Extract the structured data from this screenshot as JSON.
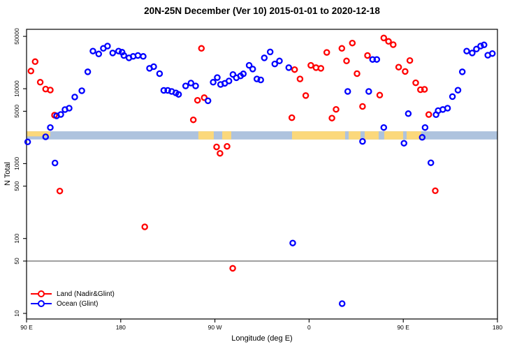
{
  "title": "20N-25N December (Ver 10)   2015-01-01 to 2020-12-18",
  "legend": {
    "items": [
      {
        "label": "Land (Nadir&Glint)",
        "color": "#ff0000"
      },
      {
        "label": "Ocean (Glint)",
        "color": "#0000ff"
      }
    ]
  },
  "chart_data": {
    "type": "scatter",
    "title": "20N-25N December (Ver 10)   2015-01-01 to 2020-12-18",
    "xlabel": "Longitude (deg E)",
    "ylabel": "N Total",
    "x_axis": {
      "type": "linear",
      "range_deg_east": [
        90,
        540
      ],
      "note": "longitude increases eastward from 90E, wrapping through 180, 90W, 0, 90E to 180",
      "ticks": [
        {
          "deg": 90,
          "label": "90 E"
        },
        {
          "deg": 180,
          "label": "180"
        },
        {
          "deg": 270,
          "label": "90 W"
        },
        {
          "deg": 360,
          "label": "0"
        },
        {
          "deg": 450,
          "label": "90 E"
        },
        {
          "deg": 540,
          "label": "180"
        }
      ]
    },
    "y_axis": {
      "type": "log10",
      "range": [
        8.5,
        62000
      ],
      "ticks": [
        10,
        50,
        100,
        500,
        1000,
        5000,
        10000,
        50000
      ]
    },
    "reference_line": {
      "y": 50,
      "color": "#808080"
    },
    "map_strip": {
      "n_top": 2700,
      "n_bottom": 2100,
      "ocean_color": "#aec3de",
      "land_color": "#fbd87b",
      "land_segments_deg": [
        [
          90,
          112.7
        ],
        [
          254.2,
          268.9
        ],
        [
          277.0,
          285.6
        ],
        [
          343.7,
          467.2
        ]
      ],
      "ocean_gaps_deg": [
        [
          394.4,
          397.8
        ],
        [
          409.1,
          413.1
        ],
        [
          426.5,
          431.8
        ],
        [
          449.9,
          453.2
        ]
      ]
    },
    "series": [
      {
        "name": "Land (Nadir&Glint)",
        "color": "#ff0000",
        "marker": "open-circle",
        "points_deg_n": [
          [
            94.2,
            17200
          ],
          [
            98.2,
            23000
          ],
          [
            103.1,
            12200
          ],
          [
            108.2,
            9900
          ],
          [
            112.7,
            9600
          ],
          [
            116.7,
            4430
          ],
          [
            121.8,
            430
          ],
          [
            203.0,
            143
          ],
          [
            249.4,
            3840
          ],
          [
            253.4,
            7000
          ],
          [
            257.1,
            34600
          ],
          [
            259.8,
            7600
          ],
          [
            271.6,
            1670
          ],
          [
            274.9,
            1370
          ],
          [
            281.6,
            1700
          ],
          [
            287.0,
            40
          ],
          [
            343.5,
            4100
          ],
          [
            346.2,
            18000
          ],
          [
            351.3,
            13500
          ],
          [
            356.8,
            8100
          ],
          [
            361.7,
            20500
          ],
          [
            366.6,
            19100
          ],
          [
            371.3,
            18700
          ],
          [
            376.9,
            30500
          ],
          [
            381.8,
            4050
          ],
          [
            385.8,
            5300
          ],
          [
            391.3,
            34600
          ],
          [
            395.8,
            23500
          ],
          [
            401.3,
            40700
          ],
          [
            405.8,
            15900
          ],
          [
            411.1,
            5800
          ],
          [
            415.8,
            27800
          ],
          [
            427.5,
            8200
          ],
          [
            431.4,
            47600
          ],
          [
            435.9,
            42800
          ],
          [
            440.4,
            38700
          ],
          [
            445.6,
            19400
          ],
          [
            451.8,
            17000
          ],
          [
            456.3,
            23800
          ],
          [
            461.9,
            12000
          ],
          [
            466.4,
            9700
          ],
          [
            470.3,
            9800
          ],
          [
            474.4,
            4520
          ],
          [
            480.6,
            434
          ]
        ]
      },
      {
        "name": "Ocean (Glint)",
        "color": "#0000ff",
        "marker": "open-circle",
        "points_deg_n": [
          [
            91.1,
            1950
          ],
          [
            108.2,
            2280
          ],
          [
            112.7,
            3030
          ],
          [
            117.2,
            1020
          ],
          [
            118.7,
            4340
          ],
          [
            122.7,
            4530
          ],
          [
            126.7,
            5260
          ],
          [
            130.7,
            5500
          ],
          [
            136.1,
            7750
          ],
          [
            142.8,
            9400
          ],
          [
            148.5,
            16800
          ],
          [
            153.4,
            31800
          ],
          [
            159.0,
            29100
          ],
          [
            163.4,
            34600
          ],
          [
            167.4,
            37100
          ],
          [
            172.3,
            30000
          ],
          [
            177.9,
            31800
          ],
          [
            181.3,
            30700
          ],
          [
            183.0,
            27800
          ],
          [
            187.9,
            25800
          ],
          [
            191.9,
            27000
          ],
          [
            196.4,
            27800
          ],
          [
            201.5,
            27000
          ],
          [
            207.5,
            18700
          ],
          [
            211.5,
            19700
          ],
          [
            217.1,
            15900
          ],
          [
            221.1,
            9500
          ],
          [
            224.9,
            9500
          ],
          [
            228.7,
            9200
          ],
          [
            232.7,
            8800
          ],
          [
            235.3,
            8400
          ],
          [
            242.0,
            10900
          ],
          [
            247.1,
            11900
          ],
          [
            251.6,
            10900
          ],
          [
            263.4,
            6900
          ],
          [
            268.3,
            12200
          ],
          [
            272.3,
            14100
          ],
          [
            275.4,
            11400
          ],
          [
            279.4,
            11800
          ],
          [
            283.4,
            12700
          ],
          [
            287.2,
            15500
          ],
          [
            290.5,
            14000
          ],
          [
            294.5,
            14800
          ],
          [
            297.2,
            15800
          ],
          [
            302.7,
            20500
          ],
          [
            306.1,
            18300
          ],
          [
            310.1,
            13500
          ],
          [
            313.8,
            13100
          ],
          [
            317.2,
            25800
          ],
          [
            322.8,
            31000
          ],
          [
            327.2,
            21400
          ],
          [
            331.7,
            23500
          ],
          [
            340.6,
            19100
          ],
          [
            344.4,
            87
          ],
          [
            391.6,
            13.5
          ],
          [
            396.9,
            9200
          ],
          [
            411.1,
            1980
          ],
          [
            417.0,
            9200
          ],
          [
            420.7,
            24600
          ],
          [
            424.7,
            24600
          ],
          [
            431.4,
            3030
          ],
          [
            450.7,
            1870
          ],
          [
            454.8,
            4650
          ],
          [
            468.1,
            2240
          ],
          [
            470.8,
            3030
          ],
          [
            476.4,
            1025
          ],
          [
            481.3,
            4500
          ],
          [
            483.3,
            5100
          ],
          [
            487.8,
            5270
          ],
          [
            492.3,
            5500
          ],
          [
            497.0,
            7850
          ],
          [
            502.3,
            9550
          ],
          [
            506.4,
            16800
          ],
          [
            510.6,
            31800
          ],
          [
            515.9,
            30000
          ],
          [
            519.9,
            33800
          ],
          [
            523.9,
            37100
          ],
          [
            527.2,
            38500
          ],
          [
            530.8,
            28000
          ],
          [
            535.1,
            29500
          ]
        ]
      }
    ],
    "legend_position": "bottom-left",
    "grid": false
  }
}
